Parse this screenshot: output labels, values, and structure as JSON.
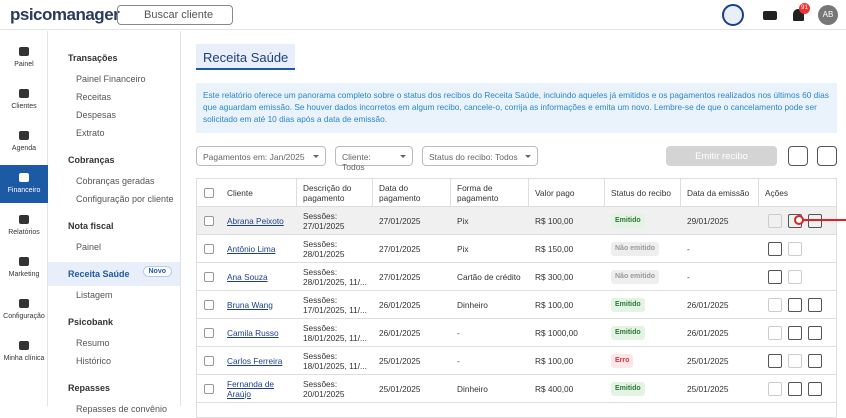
{
  "header": {
    "logo": "psicomanager",
    "search": "Buscar cliente",
    "notification_count": "91",
    "avatar": "AB"
  },
  "nav": [
    "Painel",
    "Clientes",
    "Agenda",
    "Financeiro",
    "Relatórios",
    "Marketing",
    "Configuração",
    "Minha clínica"
  ],
  "submenu": [
    {
      "title": "Transações",
      "items": [
        "Painel Financeiro",
        "Receitas",
        "Despesas",
        "Extrato"
      ]
    },
    {
      "title": "Cobranças",
      "items": [
        "Cobranças geradas",
        "Configuração por cliente"
      ]
    },
    {
      "title": "Nota fiscal",
      "items": [
        "Painel"
      ]
    },
    {
      "title": "Receita Saúde",
      "badge": "Novo",
      "items": [
        "Listagem"
      ]
    },
    {
      "title": "Psicobank",
      "items": [
        "Resumo",
        "Histórico"
      ]
    },
    {
      "title": "Repasses",
      "items": [
        "Repasses de convênio"
      ]
    }
  ],
  "page": {
    "title": "Receita Saúde",
    "info": "Este relatório oferece um panorama completo sobre o status dos recibos do Receita Saúde, incluindo aqueles já emitidos e os pagamentos realizados nos últimos 60 dias que aguardam emissão. Se houver dados incorretos em algum recibo, cancele-o, corrija as informações e emita um novo. Lembre-se de que o cancelamento pode ser solicitado em até 10 dias após a data de emissão.",
    "filters": [
      "Pagamentos em: Jan/2025",
      "Cliente: Todos",
      "Status do recibo: Todos"
    ],
    "button": "Emitir recibo"
  },
  "table": {
    "headers": [
      "Cliente",
      "Descrição do pagamento",
      "Data do pagamento",
      "Forma de pagamento",
      "Valor pago",
      "Status do recibo",
      "Data da emissão",
      "Ações"
    ],
    "rows": [
      [
        "Abrana Peixoto",
        [
          "Sessões:",
          "27/01/2025"
        ],
        "27/01/2025",
        "Pix",
        "R$ 100,00",
        "Emitido",
        "29/01/2025"
      ],
      [
        "Antônio Lima",
        [
          "Sessões:",
          "28/01/2025"
        ],
        "27/01/2025",
        "Pix",
        "R$ 150,00",
        "Não emitido",
        "-"
      ],
      [
        "Ana Souza",
        [
          "Sessões:",
          "28/01/2025, 11/..."
        ],
        "27/01/2025",
        "Cartão de crédito",
        "R$ 300,00",
        "Não emitido",
        "-"
      ],
      [
        "Bruna Wang",
        [
          "Sessões:",
          "17/01/2025, 11/..."
        ],
        "26/01/2025",
        "Dinheiro",
        "R$ 100,00",
        "Emitido",
        "26/01/2025"
      ],
      [
        "Camila Russo",
        [
          "Sessões:",
          "18/01/2025, 11/..."
        ],
        "26/01/2025",
        "-",
        "R$ 1000,00",
        "Emitido",
        "26/01/2025"
      ],
      [
        "Carlos Ferreira",
        [
          "Sessões:",
          "18/01/2025, 11/..."
        ],
        "25/01/2025",
        "-",
        "R$ 100,00",
        "Erro",
        "25/01/2025"
      ],
      [
        "Fernanda de Araújo",
        [
          "Sessões:",
          "20/01/2025"
        ],
        "25/01/2025",
        "Dinheiro",
        "R$ 400,00",
        "Emitido",
        "25/01/2025"
      ]
    ]
  }
}
